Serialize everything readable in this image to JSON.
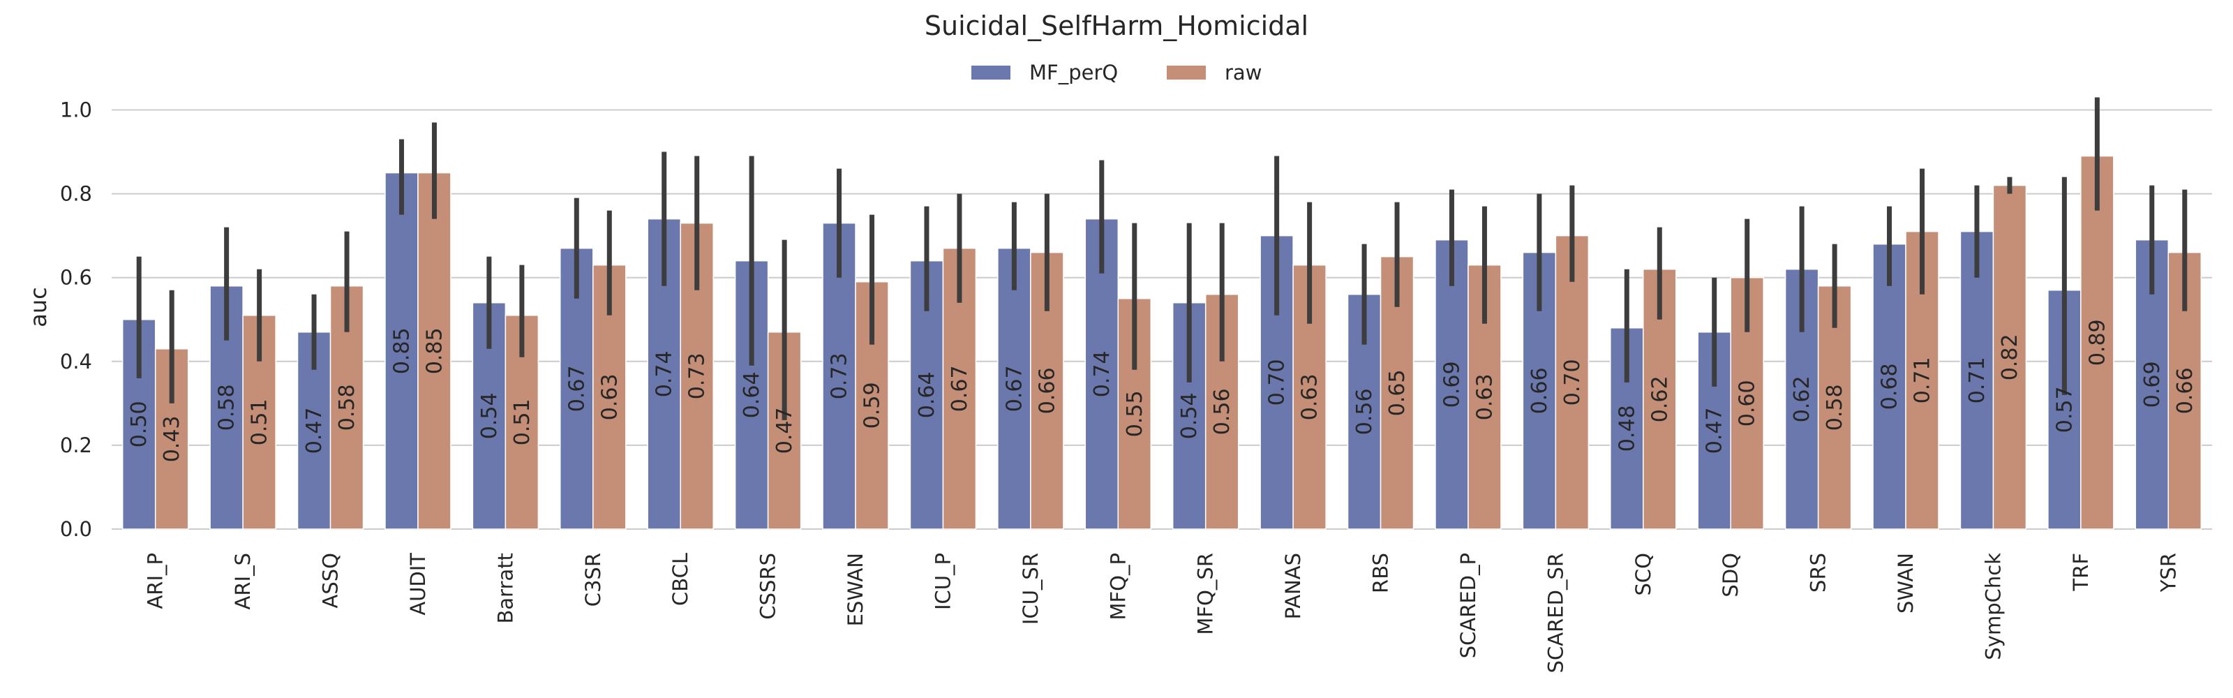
{
  "chart_data": {
    "type": "bar",
    "title": "Suicidal_SelfHarm_Homicidal",
    "xlabel": "",
    "ylabel": "auc",
    "ylim": [
      0,
      1.08
    ],
    "yticks": [
      "0.0",
      "0.2",
      "0.4",
      "0.6",
      "0.8",
      "1.0"
    ],
    "grid": true,
    "legend_position": "top-center",
    "categories": [
      "ARI_P",
      "ARI_S",
      "ASSQ",
      "AUDIT",
      "Barratt",
      "C3SR",
      "CBCL",
      "CSSRS",
      "ESWAN",
      "ICU_P",
      "ICU_SR",
      "MFQ_P",
      "MFQ_SR",
      "PANAS",
      "RBS",
      "SCARED_P",
      "SCARED_SR",
      "SCQ",
      "SDQ",
      "SRS",
      "SWAN",
      "SympChck",
      "TRF",
      "YSR"
    ],
    "series": [
      {
        "name": "MF_perQ",
        "color": "#6b78ad",
        "values": [
          0.5,
          0.58,
          0.47,
          0.85,
          0.54,
          0.67,
          0.74,
          0.64,
          0.73,
          0.64,
          0.67,
          0.74,
          0.54,
          0.7,
          0.56,
          0.69,
          0.66,
          0.48,
          0.47,
          0.62,
          0.68,
          0.71,
          0.57,
          0.69
        ],
        "labels": [
          "0.50",
          "0.58",
          "0.47",
          "0.85",
          "0.54",
          "0.67",
          "0.74",
          "0.64",
          "0.73",
          "0.64",
          "0.67",
          "0.74",
          "0.54",
          "0.70",
          "0.56",
          "0.69",
          "0.66",
          "0.48",
          "0.47",
          "0.62",
          "0.68",
          "0.71",
          "0.57",
          "0.69"
        ],
        "ci_low": [
          0.36,
          0.45,
          0.38,
          0.75,
          0.43,
          0.55,
          0.58,
          0.39,
          0.6,
          0.52,
          0.57,
          0.61,
          0.35,
          0.51,
          0.44,
          0.58,
          0.52,
          0.35,
          0.34,
          0.47,
          0.58,
          0.6,
          0.32,
          0.56
        ],
        "ci_high": [
          0.65,
          0.72,
          0.56,
          0.93,
          0.65,
          0.79,
          0.9,
          0.89,
          0.86,
          0.77,
          0.78,
          0.88,
          0.73,
          0.89,
          0.68,
          0.81,
          0.8,
          0.62,
          0.6,
          0.77,
          0.77,
          0.82,
          0.84,
          0.82
        ]
      },
      {
        "name": "raw",
        "color": "#c58e76",
        "values": [
          0.43,
          0.51,
          0.58,
          0.85,
          0.51,
          0.63,
          0.73,
          0.47,
          0.59,
          0.67,
          0.66,
          0.55,
          0.56,
          0.63,
          0.65,
          0.63,
          0.7,
          0.62,
          0.6,
          0.58,
          0.71,
          0.82,
          0.89,
          0.66
        ],
        "labels": [
          "0.43",
          "0.51",
          "0.58",
          "0.85",
          "0.51",
          "0.63",
          "0.73",
          "0.47",
          "0.59",
          "0.67",
          "0.66",
          "0.55",
          "0.56",
          "0.63",
          "0.65",
          "0.63",
          "0.70",
          "0.62",
          "0.60",
          "0.58",
          "0.71",
          "0.82",
          "0.89",
          "0.66"
        ],
        "ci_low": [
          0.3,
          0.4,
          0.47,
          0.74,
          0.41,
          0.51,
          0.57,
          0.26,
          0.44,
          0.54,
          0.52,
          0.38,
          0.4,
          0.49,
          0.53,
          0.49,
          0.59,
          0.5,
          0.47,
          0.48,
          0.56,
          0.8,
          0.76,
          0.52
        ],
        "ci_high": [
          0.57,
          0.62,
          0.71,
          0.97,
          0.63,
          0.76,
          0.89,
          0.69,
          0.75,
          0.8,
          0.8,
          0.73,
          0.73,
          0.78,
          0.78,
          0.77,
          0.82,
          0.72,
          0.74,
          0.68,
          0.86,
          0.84,
          1.03,
          0.81
        ]
      }
    ]
  }
}
